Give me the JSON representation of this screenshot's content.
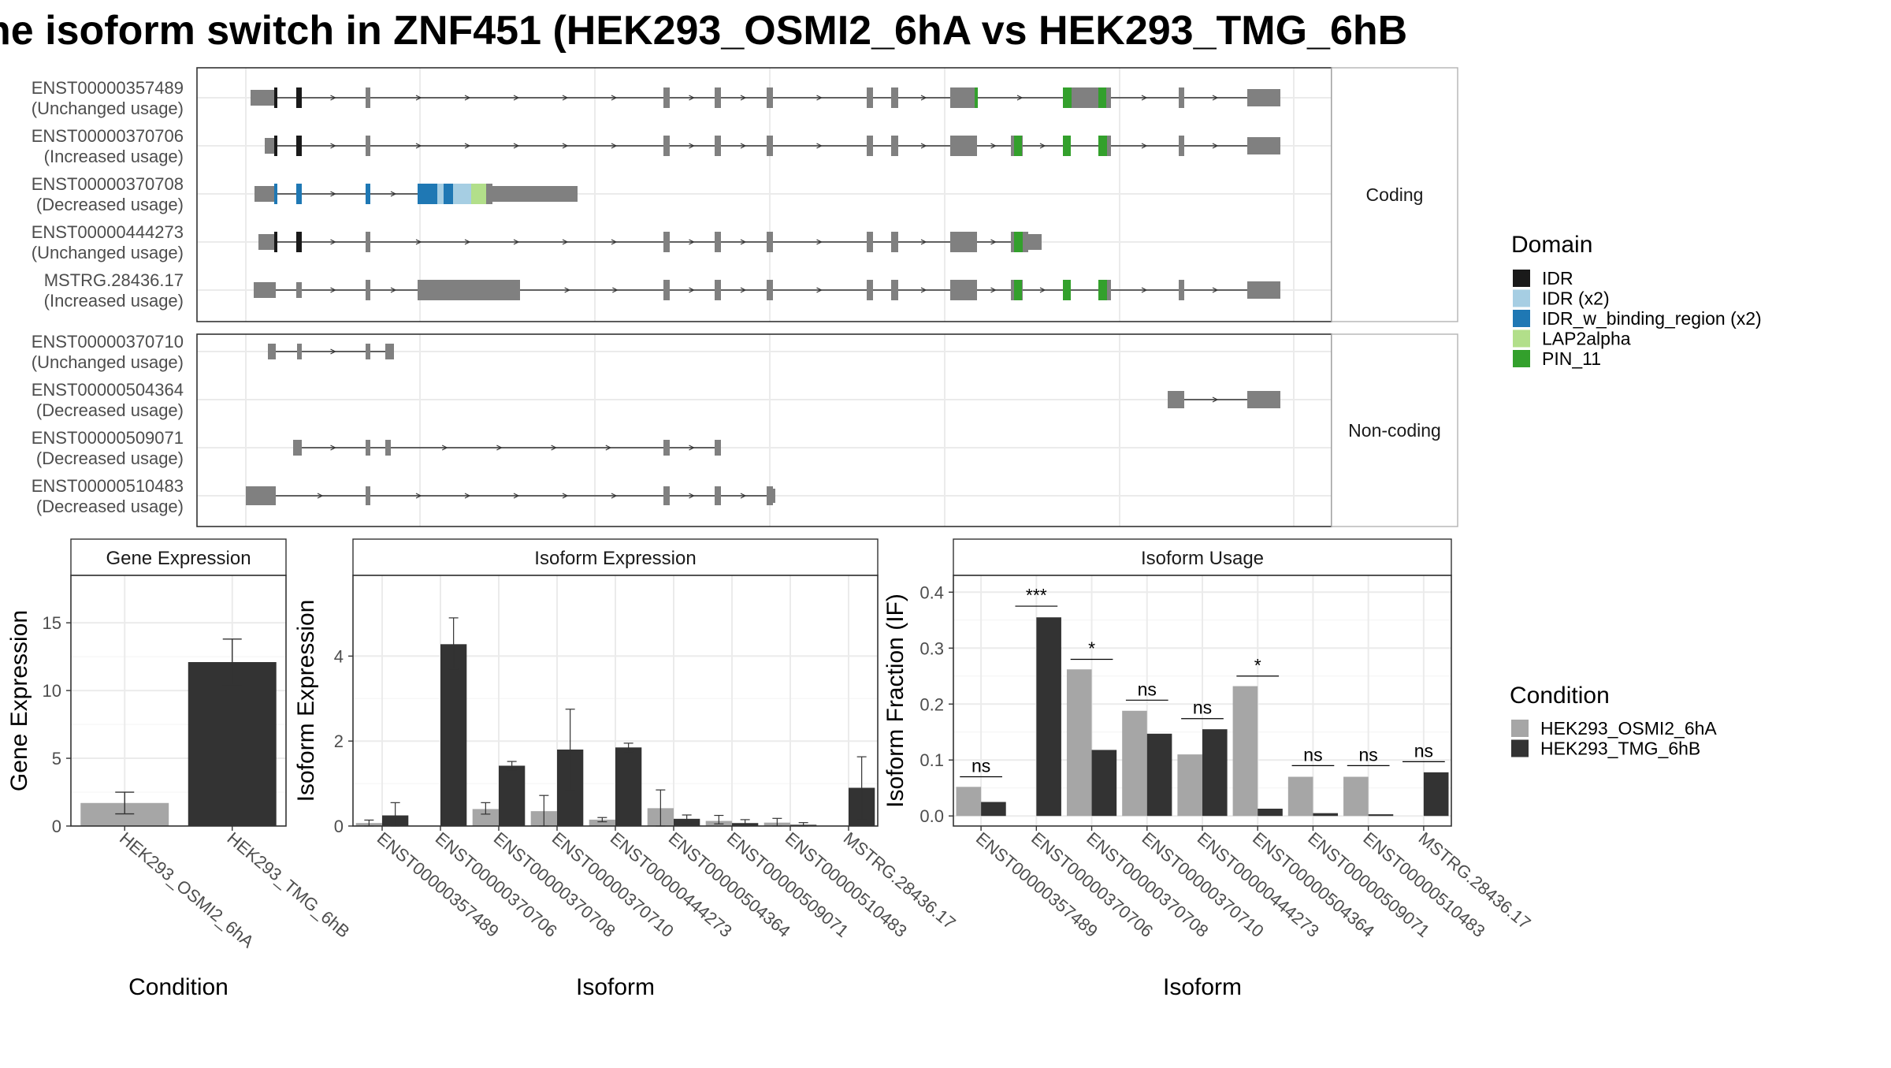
{
  "title": "he isoform switch in ZNF451 (HEK293_OSMI2_6hA vs HEK293_TMG_6hB",
  "colors": {
    "exon": "#808080",
    "intron": "#333333",
    "grid": "#ebebeb",
    "bar_a": "#a6a6a6",
    "bar_b": "#333333",
    "IDR": "#1a1a1a",
    "IDR_x2": "#a6cee3",
    "IDR_w_binding": "#1f78b4",
    "LAP2alpha": "#b2df8a",
    "PIN_11": "#33a02c"
  },
  "structure": {
    "facets": [
      "Coding",
      "Non-coding"
    ],
    "coding": [
      {
        "id": "ENST00000357489",
        "usage": "(Unchanged usage)"
      },
      {
        "id": "ENST00000370706",
        "usage": "(Increased usage)"
      },
      {
        "id": "ENST00000370708",
        "usage": "(Decreased usage)"
      },
      {
        "id": "ENST00000444273",
        "usage": "(Unchanged usage)"
      },
      {
        "id": "MSTRG.28436.17",
        "usage": "(Increased usage)"
      }
    ],
    "noncoding": [
      {
        "id": "ENST00000370710",
        "usage": "(Unchanged usage)"
      },
      {
        "id": "ENST00000504364",
        "usage": "(Decreased usage)"
      },
      {
        "id": "ENST00000509071",
        "usage": "(Decreased usage)"
      },
      {
        "id": "ENST00000510483",
        "usage": "(Decreased usage)"
      }
    ]
  },
  "domain_legend": {
    "title": "Domain",
    "items": [
      "IDR",
      "IDR (x2)",
      "IDR_w_binding_region (x2)",
      "LAP2alpha",
      "PIN_11"
    ]
  },
  "condition_legend": {
    "title": "Condition",
    "items": [
      "HEK293_OSMI2_6hA",
      "HEK293_TMG_6hB"
    ]
  },
  "chart_data": [
    {
      "type": "bar",
      "title": "Gene Expression",
      "xlabel": "Condition",
      "ylabel": "Gene Expression",
      "ylim": [
        0,
        18.5
      ],
      "yticks": [
        0,
        5,
        10,
        15
      ],
      "categories": [
        "HEK293_OSMI2_6hA",
        "HEK293_TMG_6hB"
      ],
      "values": [
        1.7,
        12.1
      ],
      "errors": [
        [
          0.9,
          2.5
        ],
        [
          10.4,
          13.8
        ]
      ]
    },
    {
      "type": "bar",
      "title": "Isoform Expression",
      "xlabel": "Isoform",
      "ylabel": "Isoform Expression",
      "ylim": [
        0,
        5.9
      ],
      "yticks": [
        0,
        2,
        4
      ],
      "categories": [
        "ENST00000357489",
        "ENST00000370706",
        "ENST00000370708",
        "ENST00000370710",
        "ENST00000444273",
        "ENST00000504364",
        "ENST00000509071",
        "ENST00000510483",
        "MSTRG.28436.17"
      ],
      "series": [
        {
          "name": "HEK293_OSMI2_6hA",
          "values": [
            0.07,
            0.0,
            0.4,
            0.35,
            0.15,
            0.42,
            0.12,
            0.08,
            0.0
          ],
          "errors": [
            [
              0.0,
              0.14
            ],
            [
              0.0,
              0.0
            ],
            [
              0.28,
              0.55
            ],
            [
              0.0,
              0.72
            ],
            [
              0.1,
              0.2
            ],
            [
              0.0,
              0.85
            ],
            [
              0.05,
              0.25
            ],
            [
              0.0,
              0.18
            ],
            [
              0.0,
              0.0
            ]
          ]
        },
        {
          "name": "HEK293_TMG_6hB",
          "values": [
            0.25,
            4.28,
            1.42,
            1.8,
            1.85,
            0.17,
            0.07,
            0.03,
            0.9
          ],
          "errors": [
            [
              0.0,
              0.55
            ],
            [
              3.7,
              4.9
            ],
            [
              1.32,
              1.52
            ],
            [
              0.85,
              2.75
            ],
            [
              1.75,
              1.95
            ],
            [
              0.08,
              0.26
            ],
            [
              0.0,
              0.15
            ],
            [
              0.0,
              0.08
            ],
            [
              0.15,
              1.63
            ]
          ]
        }
      ]
    },
    {
      "type": "bar",
      "title": "Isoform Usage",
      "xlabel": "Isoform",
      "ylabel": "Isoform Fraction (IF)",
      "ylim": [
        -0.018,
        0.43
      ],
      "yticks": [
        0.0,
        0.1,
        0.2,
        0.3,
        0.4
      ],
      "categories": [
        "ENST00000357489",
        "ENST00000370706",
        "ENST00000370708",
        "ENST00000370710",
        "ENST00000444273",
        "ENST00000504364",
        "ENST00000509071",
        "ENST00000510483",
        "MSTRG.28436.17"
      ],
      "series": [
        {
          "name": "HEK293_OSMI2_6hA",
          "values": [
            0.052,
            0.0,
            0.262,
            0.188,
            0.11,
            0.232,
            0.07,
            0.07,
            0.0
          ]
        },
        {
          "name": "HEK293_TMG_6hB",
          "values": [
            0.025,
            0.355,
            0.118,
            0.147,
            0.155,
            0.013,
            0.005,
            0.003,
            0.078
          ]
        }
      ],
      "significance": [
        "ns",
        "***",
        "*",
        "ns",
        "ns",
        "*",
        "ns",
        "ns",
        "ns"
      ],
      "sig_heights": [
        0.07,
        0.375,
        0.28,
        0.207,
        0.174,
        0.25,
        0.09,
        0.09,
        0.097
      ]
    }
  ]
}
